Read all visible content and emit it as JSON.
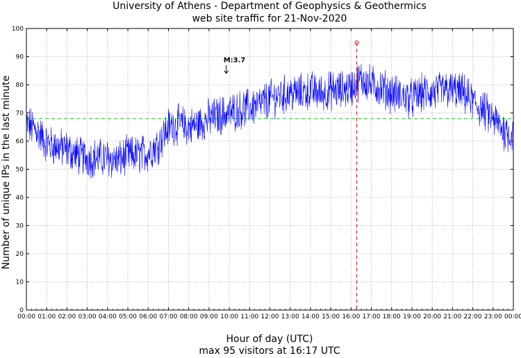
{
  "chart_data": {
    "type": "line",
    "title": "University of Athens - Department of Geophysics & Geothermics",
    "subtitle": "web site traffic for 21-Nov-2020",
    "xlabel": "Hour of day (UTC)",
    "footer": "max 95 visitors at 16:17 UTC",
    "ylabel": "Number of unique IPs in the last minute",
    "xlim": [
      0,
      24
    ],
    "ylim": [
      0,
      100
    ],
    "grid": true,
    "x_tick_labels": [
      "00:00",
      "01:00",
      "02:00",
      "03:00",
      "04:00",
      "05:00",
      "06:00",
      "07:00",
      "08:00",
      "09:00",
      "10:00",
      "11:00",
      "12:00",
      "13:00",
      "14:00",
      "15:00",
      "16:00",
      "17:00",
      "18:00",
      "19:00",
      "20:00",
      "21:00",
      "22:00",
      "23:00",
      "00:00"
    ],
    "y_ticks": [
      0,
      10,
      20,
      30,
      40,
      50,
      60,
      70,
      80,
      90,
      100
    ],
    "series": [
      {
        "color": "#0000ff",
        "hourly_baseline": [
          [
            0,
            66
          ],
          [
            0.5,
            64
          ],
          [
            1,
            59
          ],
          [
            1.5,
            58
          ],
          [
            2,
            57
          ],
          [
            2.5,
            55
          ],
          [
            3,
            54
          ],
          [
            3.5,
            54
          ],
          [
            4,
            54
          ],
          [
            4.5,
            53
          ],
          [
            5,
            55
          ],
          [
            5.5,
            55
          ],
          [
            6,
            56
          ],
          [
            6.5,
            59
          ],
          [
            7,
            65
          ],
          [
            7.5,
            66
          ],
          [
            8,
            65
          ],
          [
            8.5,
            66
          ],
          [
            9,
            68
          ],
          [
            9.5,
            69
          ],
          [
            10,
            70
          ],
          [
            10.5,
            71
          ],
          [
            11,
            72
          ],
          [
            11.5,
            73
          ],
          [
            12,
            75
          ],
          [
            12.5,
            76
          ],
          [
            13,
            77
          ],
          [
            13.5,
            77
          ],
          [
            14,
            78
          ],
          [
            14.5,
            77
          ],
          [
            15,
            78
          ],
          [
            15.5,
            78
          ],
          [
            16,
            79
          ],
          [
            16.5,
            82
          ],
          [
            17,
            80
          ],
          [
            17.5,
            79
          ],
          [
            18,
            77
          ],
          [
            18.5,
            76
          ],
          [
            19,
            75
          ],
          [
            19.5,
            77
          ],
          [
            20,
            77
          ],
          [
            20.5,
            78
          ],
          [
            21,
            78
          ],
          [
            21.5,
            77
          ],
          [
            22,
            74
          ],
          [
            22.5,
            71
          ],
          [
            23,
            68
          ],
          [
            23.5,
            64
          ],
          [
            24,
            62
          ]
        ],
        "noise_amplitude": 6
      }
    ],
    "mean_line": {
      "value": 68,
      "color": "#22cc22",
      "style": "dashed"
    },
    "max_marker": {
      "x": 16.283,
      "y": 95,
      "color": "#dd0000"
    },
    "annotations": [
      {
        "text": "M:3.7",
        "x": 9.85,
        "y": 88,
        "arrow": "down"
      }
    ]
  }
}
